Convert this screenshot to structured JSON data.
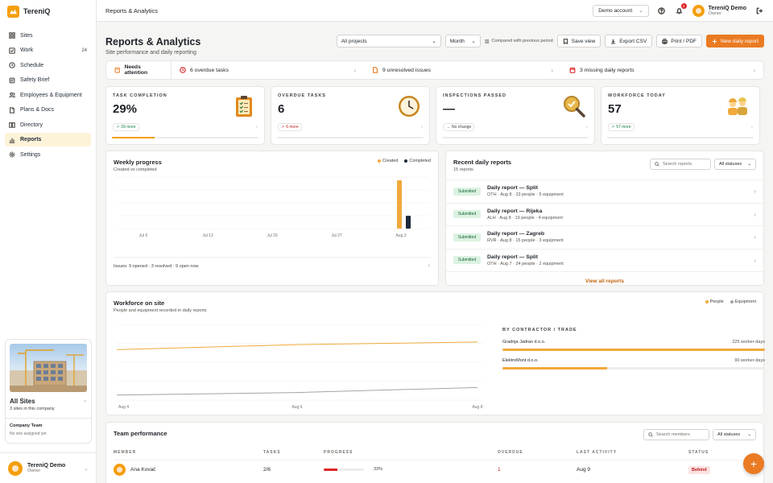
{
  "brand": {
    "name": "TereniQ"
  },
  "sidebar": {
    "items": [
      {
        "label": "Sites",
        "icon": "grid-icon"
      },
      {
        "label": "Work",
        "icon": "check-square-icon",
        "badge": "24"
      },
      {
        "label": "Schedule",
        "icon": "clock-icon"
      },
      {
        "label": "Safety Brief",
        "icon": "shield-icon"
      },
      {
        "label": "Employees & Equipment",
        "icon": "users-icon"
      },
      {
        "label": "Plans & Docs",
        "icon": "document-icon"
      },
      {
        "label": "Directory",
        "icon": "book-icon"
      },
      {
        "label": "Reports",
        "icon": "bar-chart-icon",
        "active": true
      },
      {
        "label": "Settings",
        "icon": "gear-icon"
      }
    ],
    "site_card": {
      "title": "All Sites",
      "subtitle": "3 sites in this company",
      "team_title": "Company Team",
      "team_sub": "No one assigned yet"
    },
    "user": {
      "name": "TereniQ Demo",
      "role": "Owner"
    }
  },
  "topbar": {
    "title": "Reports & Analytics",
    "account_select": "Demo account",
    "notifications": "2",
    "user_name": "TereniQ Demo",
    "user_role": "Owner"
  },
  "header": {
    "title": "Reports & Analytics",
    "subtitle": "Site performance and daily reporting",
    "project_select": "All projects",
    "period_select": "Month",
    "compare_label": "Compared with previous period",
    "save_view": "Save view",
    "export_csv": "Export CSV",
    "print_pdf": "Print / PDF",
    "new_report": "New daily report"
  },
  "attention": {
    "label": "Needs attention",
    "overdue": "6 overdue tasks",
    "issues": "9 unresolved issues",
    "missing": "3 missing daily reports"
  },
  "kpis": [
    {
      "label": "TASK COMPLETION",
      "value": "29%",
      "pill": "29 more",
      "trend": "up",
      "progress": 0.29,
      "icon": "clipboard-icon"
    },
    {
      "label": "OVERDUE TASKS",
      "value": "6",
      "pill": "6 more",
      "trend": "bad",
      "progress": 0,
      "icon": "clock-icon"
    },
    {
      "label": "INSPECTIONS PASSED",
      "value": "—",
      "pill": "No change",
      "trend": "neutral",
      "progress": 0,
      "icon": "magnifier-icon"
    },
    {
      "label": "WORKFORCE TODAY",
      "value": "57",
      "pill": "57 more",
      "trend": "up",
      "progress": 0,
      "icon": "workers-icon"
    }
  ],
  "weekly": {
    "title": "Weekly progress",
    "subtitle": "Created vs completed",
    "legend_created": "Created",
    "legend_completed": "Completed",
    "footer": "Issues: 9 opened · 3 resolved · 9 open now",
    "colors": {
      "created": "#f0a93b",
      "completed": "#1e293b"
    }
  },
  "recent": {
    "title": "Recent daily reports",
    "subtitle": "15 reports",
    "search_placeholder": "Search reports",
    "status_select": "All statuses",
    "view_all": "View all reports",
    "rows": [
      {
        "status": "Submitted",
        "title": "Daily report — Split",
        "meta": "OTH · Aug 8 · 23 people · 5 equipment"
      },
      {
        "status": "Submitted",
        "title": "Daily report — Rijeka",
        "meta": "ALH · Aug 8 · 19 people · 4 equipment"
      },
      {
        "status": "Submitted",
        "title": "Daily report — Zagreb",
        "meta": "RVR · Aug 8 · 15 people · 3 equipment"
      },
      {
        "status": "Submitted",
        "title": "Daily report — Split",
        "meta": "OTH · Aug 7 · 24 people · 2 equipment"
      }
    ]
  },
  "workforce": {
    "title": "Workforce on site",
    "subtitle": "People and equipment recorded in daily reports",
    "legend_people": "People",
    "legend_equipment": "Equipment",
    "trade_title": "BY CONTRACTOR / TRADE",
    "trades": [
      {
        "name": "Gradnja Jadran d.o.o.",
        "value": "225 worker-days",
        "share": 1.0
      },
      {
        "name": "ElektroMont d.o.o.",
        "value": "90 worker-days",
        "share": 0.4
      }
    ]
  },
  "team": {
    "title": "Team performance",
    "search_placeholder": "Search members",
    "status_select": "All statuses",
    "columns": [
      "MEMBER",
      "TASKS",
      "PROGRESS",
      "OVERDUE",
      "LAST ACTIVITY",
      "STATUS"
    ],
    "rows": [
      {
        "name": "Ana Kovač",
        "tasks": "2/6",
        "progress": "33%",
        "progress_value": 0.33,
        "overdue": "1",
        "last": "Aug 9",
        "status": "Behind"
      }
    ]
  },
  "chart_data": [
    {
      "type": "bar",
      "title": "Weekly progress",
      "categories": [
        "Jul 6",
        "Jul 13",
        "Jul 20",
        "Jul 27",
        "Aug 3"
      ],
      "series": [
        {
          "name": "Created",
          "values": [
            0,
            0,
            0,
            0,
            15
          ]
        },
        {
          "name": "Completed",
          "values": [
            0,
            0,
            0,
            0,
            4
          ]
        }
      ],
      "ylim": [
        0,
        16
      ],
      "grid": true,
      "legend": "top-right"
    },
    {
      "type": "line",
      "title": "Workforce on site",
      "x": [
        "Aug 4",
        "Aug 6",
        "Aug 8"
      ],
      "series": [
        {
          "name": "People",
          "values": [
            20,
            22,
            23
          ]
        },
        {
          "name": "Equipment",
          "values": [
            2,
            3,
            5
          ]
        }
      ],
      "grid": true,
      "legend": "top-right"
    }
  ]
}
